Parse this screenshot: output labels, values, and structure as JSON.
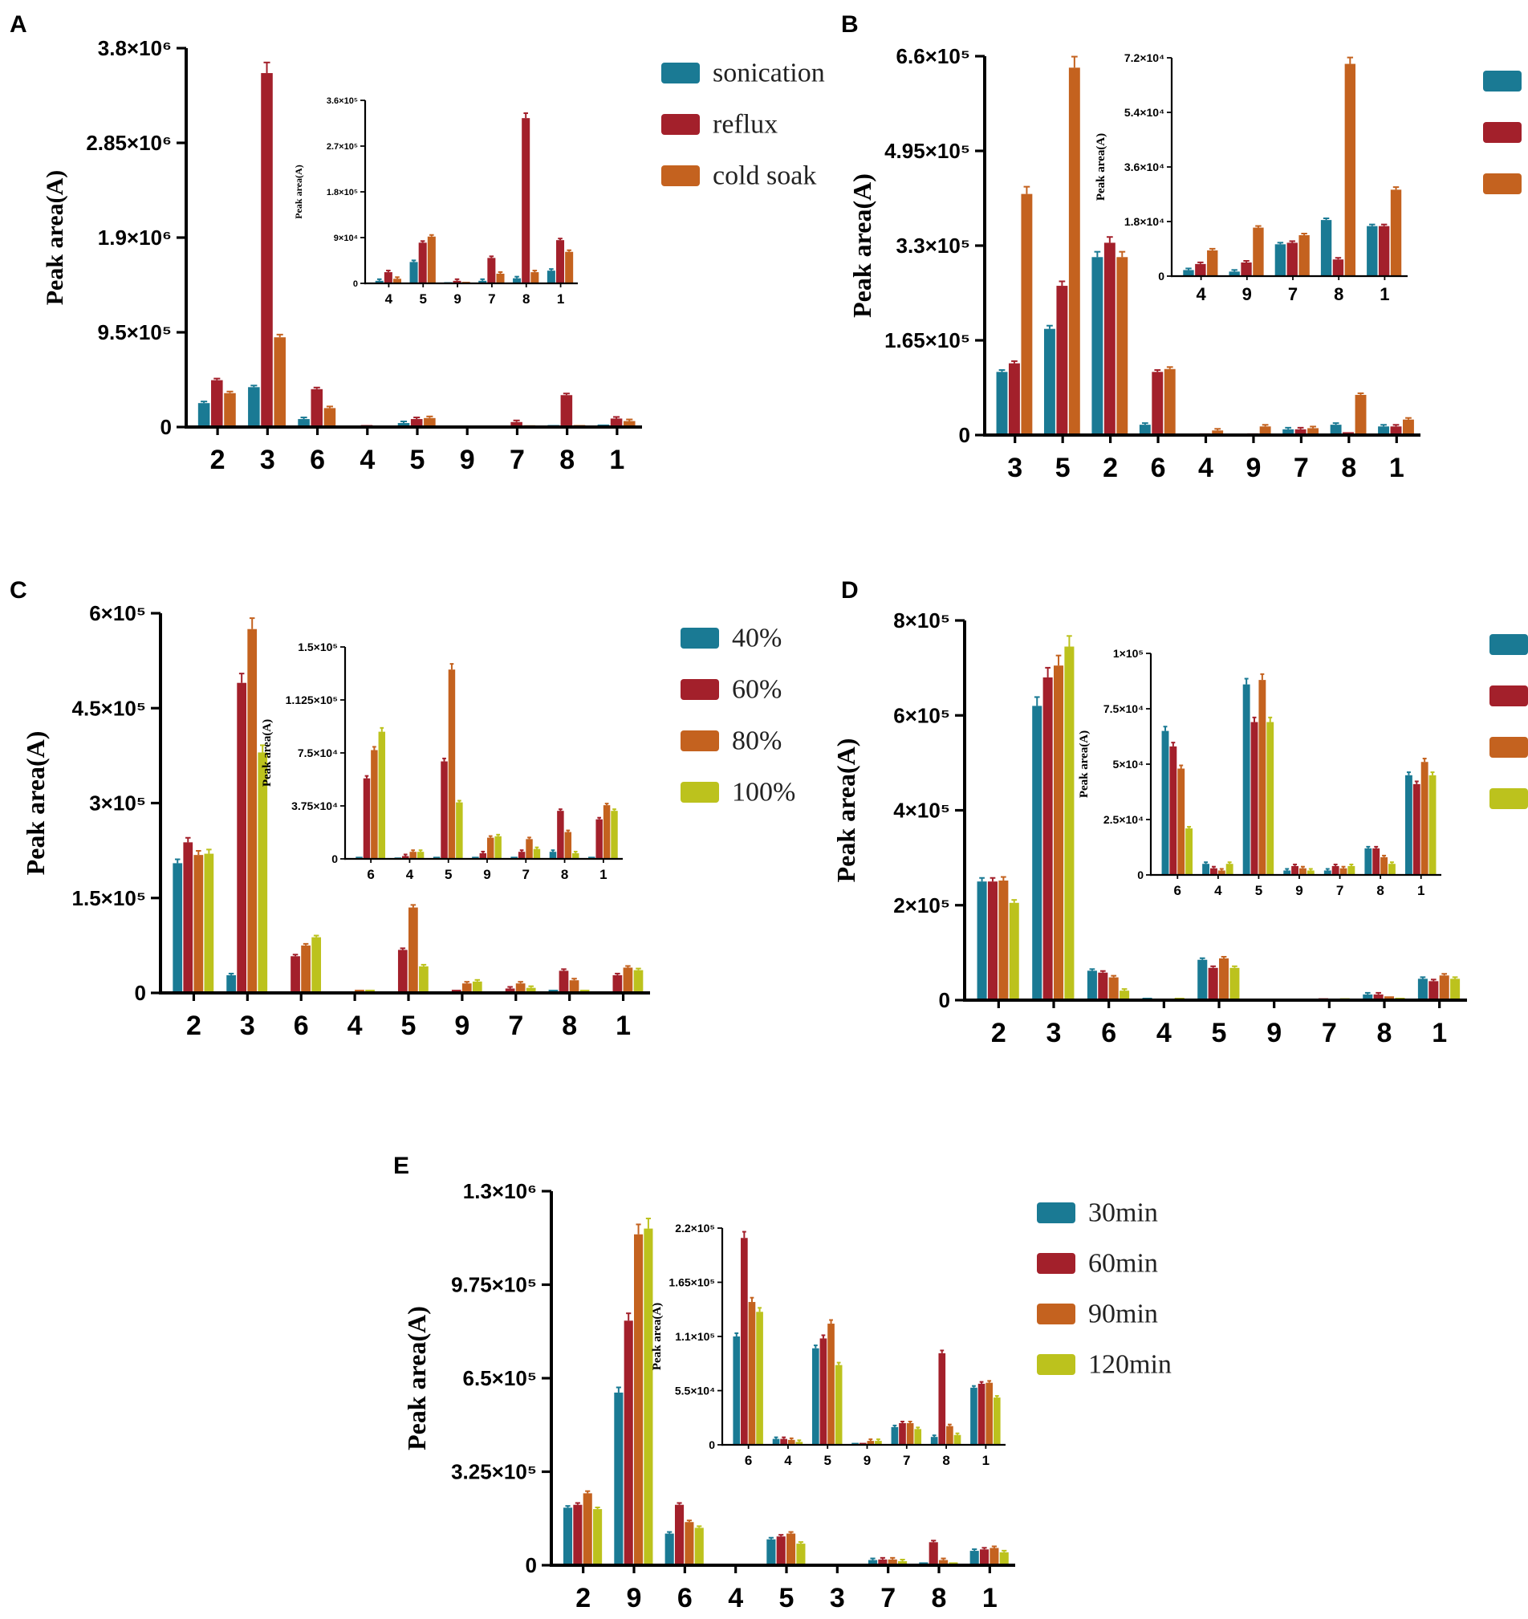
{
  "colors": {
    "teal": "#1a7a94",
    "red": "#a3202b",
    "orange": "#c4621f",
    "yellow": "#bcc21d"
  },
  "panels": [
    {
      "label": "A",
      "ylabel": "Peak area(A)",
      "legend": [
        "sonication",
        "reflux",
        "cold soak"
      ],
      "main": {
        "categories": [
          "2",
          "3",
          "6",
          "4",
          "5",
          "9",
          "7",
          "8",
          "1"
        ],
        "yticks": [
          "0",
          "9.5×10⁵",
          "1.9×10⁶",
          "2.85×10⁶",
          "3.8×10⁶"
        ],
        "ylim": [
          0,
          3800000
        ],
        "series": [
          {
            "name": "sonication",
            "values": [
              240000,
              400000,
              80000,
              5000,
              40000,
              3000,
              10000,
              20000,
              25000
            ]
          },
          {
            "name": "reflux",
            "values": [
              470000,
              3550000,
              380000,
              20000,
              80000,
              5000,
              50000,
              320000,
              85000
            ]
          },
          {
            "name": "cold soak",
            "values": [
              340000,
              900000,
              190000,
              8000,
              90000,
              3000,
              18000,
              20000,
              60000
            ]
          }
        ]
      },
      "inset": {
        "ylabel": "Peak area(A)",
        "categories": [
          "4",
          "5",
          "9",
          "7",
          "8",
          "1"
        ],
        "yticks": [
          "0",
          "9×10⁴",
          "1.8×10⁵",
          "2.7×10⁵",
          "3.6×10⁵"
        ],
        "ylim": [
          0,
          360000
        ],
        "series": [
          {
            "name": "sonication",
            "values": [
              5000,
              42000,
              2000,
              5000,
              10000,
              25000
            ]
          },
          {
            "name": "reflux",
            "values": [
              22000,
              80000,
              5000,
              50000,
              325000,
              85000
            ]
          },
          {
            "name": "cold soak",
            "values": [
              9000,
              92000,
              3000,
              19000,
              22000,
              62000
            ]
          }
        ]
      }
    },
    {
      "label": "B",
      "ylabel": "Peak area(A)",
      "legend": [],
      "main": {
        "categories": [
          "3",
          "5",
          "2",
          "6",
          "4",
          "9",
          "7",
          "8",
          "1"
        ],
        "yticks": [
          "0",
          "1.65×10⁵",
          "3.3×10⁵",
          "4.95×10⁵",
          "6.6×10⁵"
        ],
        "ylim": [
          0,
          660000
        ],
        "series": [
          {
            "name": "series-1",
            "values": [
              110000,
              185000,
              310000,
              18000,
              2000,
              2000,
              10000,
              18000,
              15000
            ]
          },
          {
            "name": "series-2",
            "values": [
              125000,
              260000,
              335000,
              110000,
              3000,
              3000,
              10000,
              5000,
              15000
            ]
          },
          {
            "name": "series-3",
            "values": [
              420000,
              640000,
              310000,
              115000,
              8000,
              15000,
              12000,
              70000,
              27000
            ]
          }
        ]
      },
      "inset": {
        "ylabel": "Peak area(A)",
        "categories": [
          "4",
          "9",
          "7",
          "8",
          "1"
        ],
        "yticks": [
          "0",
          "1.8×10⁴",
          "3.6×10⁴",
          "5.4×10⁴",
          "7.2×10⁴"
        ],
        "ylim": [
          0,
          72000
        ],
        "series": [
          {
            "name": "series-1",
            "values": [
              2000,
              1500,
              10500,
              18500,
              16500
            ]
          },
          {
            "name": "series-2",
            "values": [
              4000,
              4500,
              11000,
              5500,
              16500
            ]
          },
          {
            "name": "series-3",
            "values": [
              8500,
              16000,
              13500,
              70000,
              28500
            ]
          }
        ]
      }
    },
    {
      "label": "C",
      "ylabel": "Peak area(A)",
      "legend": [
        "40%",
        "60%",
        "80%",
        "100%"
      ],
      "main": {
        "categories": [
          "2",
          "3",
          "6",
          "4",
          "5",
          "9",
          "7",
          "8",
          "1"
        ],
        "yticks": [
          "0",
          "1.5×10⁵",
          "3×10⁵",
          "4.5×10⁵",
          "6×10⁵"
        ],
        "ylim": [
          0,
          600000
        ],
        "series": [
          {
            "name": "40%",
            "values": [
              205000,
              28000,
              2000,
              1000,
              2000,
              2000,
              2000,
              5000,
              2000
            ]
          },
          {
            "name": "60%",
            "values": [
              238000,
              490000,
              58000,
              2000,
              68000,
              5000,
              7000,
              35000,
              28000
            ]
          },
          {
            "name": "80%",
            "values": [
              218000,
              575000,
              75000,
              5000,
              135000,
              15000,
              15000,
              20000,
              40000
            ]
          },
          {
            "name": "100%",
            "values": [
              220000,
              380000,
              88000,
              5000,
              42000,
              18000,
              8000,
              5000,
              36000
            ]
          }
        ]
      },
      "inset": {
        "ylabel": "Peak area(A)",
        "categories": [
          "6",
          "4",
          "5",
          "9",
          "7",
          "8",
          "1"
        ],
        "yticks": [
          "0",
          "3.75×10⁴",
          "7.5×10⁴",
          "1.125×10⁵",
          "1.5×10⁵"
        ],
        "ylim": [
          0,
          150000
        ],
        "series": [
          {
            "name": "40%",
            "values": [
              1500,
              1000,
              1500,
              1500,
              1500,
              5000,
              1500
            ]
          },
          {
            "name": "60%",
            "values": [
              57000,
              2000,
              69000,
              4000,
              5000,
              34000,
              28000
            ]
          },
          {
            "name": "80%",
            "values": [
              77000,
              5000,
              134000,
              15000,
              14000,
              19000,
              38000
            ]
          },
          {
            "name": "100%",
            "values": [
              90000,
              5000,
              40000,
              16000,
              7000,
              4000,
              34000
            ]
          }
        ]
      }
    },
    {
      "label": "D",
      "ylabel": "Peak area(A)",
      "legend": [],
      "main": {
        "categories": [
          "2",
          "3",
          "6",
          "4",
          "5",
          "9",
          "7",
          "8",
          "1"
        ],
        "yticks": [
          "0",
          "2×10⁵",
          "4×10⁵",
          "6×10⁵",
          "8×10⁵"
        ],
        "ylim": [
          0,
          800000
        ],
        "series": [
          {
            "name": "series-1",
            "values": [
              250000,
              620000,
              62000,
              5000,
              85000,
              2000,
              2000,
              12000,
              45000
            ]
          },
          {
            "name": "series-2",
            "values": [
              250000,
              680000,
              58000,
              3000,
              68000,
              3000,
              4000,
              12000,
              40000
            ]
          },
          {
            "name": "series-3",
            "values": [
              252000,
              705000,
              48000,
              2000,
              88000,
              2000,
              3000,
              8000,
              52000
            ]
          },
          {
            "name": "series-4",
            "values": [
              205000,
              745000,
              20000,
              5000,
              68000,
              2000,
              4000,
              5000,
              45000
            ]
          }
        ]
      },
      "inset": {
        "ylabel": "Peak area(A)",
        "categories": [
          "6",
          "4",
          "5",
          "9",
          "7",
          "8",
          "1"
        ],
        "yticks": [
          "0",
          "2.5×10⁴",
          "5×10⁴",
          "7.5×10⁴",
          "1×10⁵"
        ],
        "ylim": [
          0,
          100000
        ],
        "series": [
          {
            "name": "series-1",
            "values": [
              65000,
              5000,
              86000,
              2000,
              2000,
              12000,
              45000
            ]
          },
          {
            "name": "series-2",
            "values": [
              58000,
              3000,
              69000,
              4000,
              4000,
              12000,
              41000
            ]
          },
          {
            "name": "series-3",
            "values": [
              48000,
              2000,
              88000,
              3000,
              3000,
              8000,
              51000
            ]
          },
          {
            "name": "series-4",
            "values": [
              21000,
              5000,
              69000,
              2000,
              4000,
              5000,
              45000
            ]
          }
        ]
      }
    },
    {
      "label": "E",
      "ylabel": "Peak area(A)",
      "legend": [
        "30min",
        "60min",
        "90min",
        "120min"
      ],
      "main": {
        "categories": [
          "2",
          "9",
          "6",
          "4",
          "5",
          "3",
          "7",
          "8",
          "1"
        ],
        "yticks": [
          "0",
          "3.25×10⁵",
          "6.5×10⁵",
          "9.75×10⁵",
          "1.3×10⁶"
        ],
        "ylim": [
          0,
          1300000
        ],
        "series": [
          {
            "name": "30min",
            "values": [
              200000,
              600000,
              110000,
              5000,
              90000,
              2000,
              18000,
              10000,
              50000
            ]
          },
          {
            "name": "60min",
            "values": [
              210000,
              850000,
              210000,
              5000,
              100000,
              2000,
              20000,
              80000,
              55000
            ]
          },
          {
            "name": "90min",
            "values": [
              250000,
              1150000,
              150000,
              3000,
              110000,
              3000,
              20000,
              18000,
              60000
            ]
          },
          {
            "name": "120min",
            "values": [
              195000,
              1170000,
              130000,
              2000,
              75000,
              3000,
              14000,
              10000,
              45000
            ]
          }
        ]
      },
      "inset": {
        "ylabel": "Peak area(A)",
        "categories": [
          "6",
          "4",
          "5",
          "9",
          "7",
          "8",
          "1"
        ],
        "yticks": [
          "0",
          "5.5×10⁴",
          "1.1×10⁵",
          "1.65×10⁵",
          "2.2×10⁵"
        ],
        "ylim": [
          0,
          220000
        ],
        "series": [
          {
            "name": "30min",
            "values": [
              110000,
              6000,
              98000,
              2000,
              18000,
              8000,
              58000
            ]
          },
          {
            "name": "60min",
            "values": [
              210000,
              6000,
              108000,
              2000,
              22000,
              93000,
              62000
            ]
          },
          {
            "name": "90min",
            "values": [
              145000,
              5000,
              123000,
              4000,
              22000,
              19000,
              63000
            ]
          },
          {
            "name": "120min",
            "values": [
              135000,
              3000,
              81000,
              4000,
              16000,
              10000,
              48000
            ]
          }
        ]
      }
    }
  ]
}
